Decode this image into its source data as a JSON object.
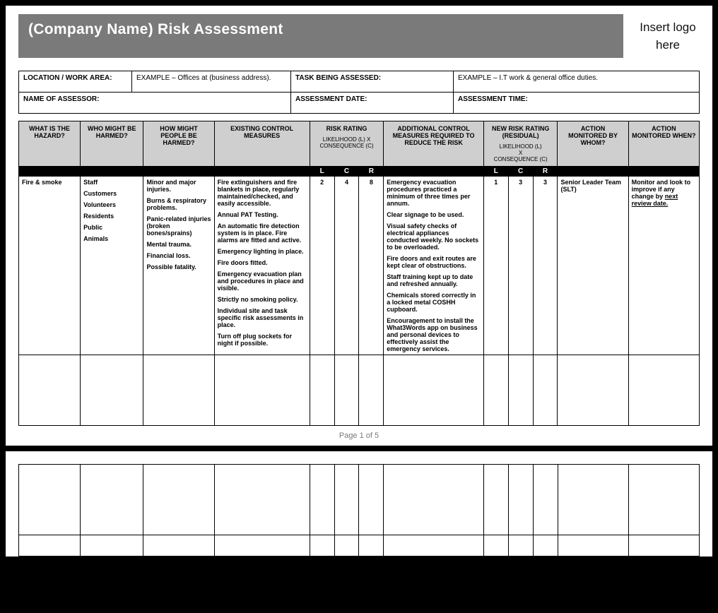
{
  "title": "(Company Name) Risk Assessment",
  "logo_text": "Insert logo here",
  "meta": {
    "location_label": "LOCATION / WORK AREA:",
    "location_value": "EXAMPLE – Offices at (business address).",
    "task_label": "TASK BEING ASSESSED:",
    "task_value": "EXAMPLE – I.T work & general office duties.",
    "assessor_label": "NAME OF ASSESSOR:",
    "assessor_value": "",
    "date_label": "ASSESSMENT DATE:",
    "date_value": "",
    "time_label": "ASSESSMENT TIME:",
    "time_value": ""
  },
  "headers": {
    "hazard": "WHAT IS THE HAZARD?",
    "who": "WHO MIGHT BE HARMED?",
    "how": "HOW MIGHT PEOPLE BE HARMED?",
    "existing": "EXISTING CONTROL MEASURES",
    "risk_rating": "RISK RATING",
    "risk_rating_sub": "LIKELIHOOD (L) X CONSEQUENCE (C)",
    "additional": "ADDITIONAL CONTROL MEASURES REQUIRED TO REDUCE THE RISK",
    "new_rating": "NEW RISK RATING (RESIDUAL)",
    "new_rating_sub1": "LIKELIHOOD (L)",
    "new_rating_sub2": "X",
    "new_rating_sub3": "CONSEQUENCE (C)",
    "monitored": "ACTION MONITORED BY WHOM?",
    "when": "ACTION MONITORED WHEN?",
    "L": "L",
    "C": "C",
    "R": "R"
  },
  "row": {
    "hazard": "Fire & smoke",
    "who": [
      "Staff",
      "Customers",
      "Volunteers",
      "Residents",
      "Public",
      "Animals"
    ],
    "how": [
      "Minor and major injuries.",
      "Burns & respiratory problems.",
      "Panic-related injuries (broken bones/sprains)",
      "Mental trauma.",
      "Financial loss.",
      "Possible fatality."
    ],
    "existing": [
      "Fire extinguishers and fire blankets in place, regularly maintained/checked, and easily accessible.",
      "Annual PAT Testing.",
      "An automatic fire detection system is in place. Fire alarms are fitted and active.",
      "Emergency lighting in place.",
      "Fire doors fitted.",
      "Emergency evacuation plan and procedures in place and visible.",
      "Strictly no smoking policy.",
      "Individual site and task specific risk assessments in place.",
      "Turn off plug sockets for night if possible."
    ],
    "L": "2",
    "C": "4",
    "R": "8",
    "additional": [
      "Emergency evacuation procedures practiced a minimum of three times per annum.",
      "Clear signage to be used.",
      "Visual safety checks of electrical appliances conducted weekly. No sockets to be overloaded.",
      "Fire doors and exit routes are kept clear of obstructions.",
      "Staff training kept up to date and refreshed annually.",
      "Chemicals stored correctly in a locked metal COSHH cupboard.",
      "Encouragement to install the What3Words app on business and personal devices to effectively assist the emergency services."
    ],
    "L2": "1",
    "C2": "3",
    "R2": "3",
    "monitored": "Senior Leader Team (SLT)",
    "when_pre": "Monitor and look to improve if any change by ",
    "when_link": "next review date."
  },
  "footer": "Page 1 of 5",
  "colors": {
    "header_bg": "#cfcfcf",
    "title_bg": "#7a7a7a",
    "border": "#000000",
    "page_bg": "#ffffff",
    "outer_bg": "#000000"
  }
}
